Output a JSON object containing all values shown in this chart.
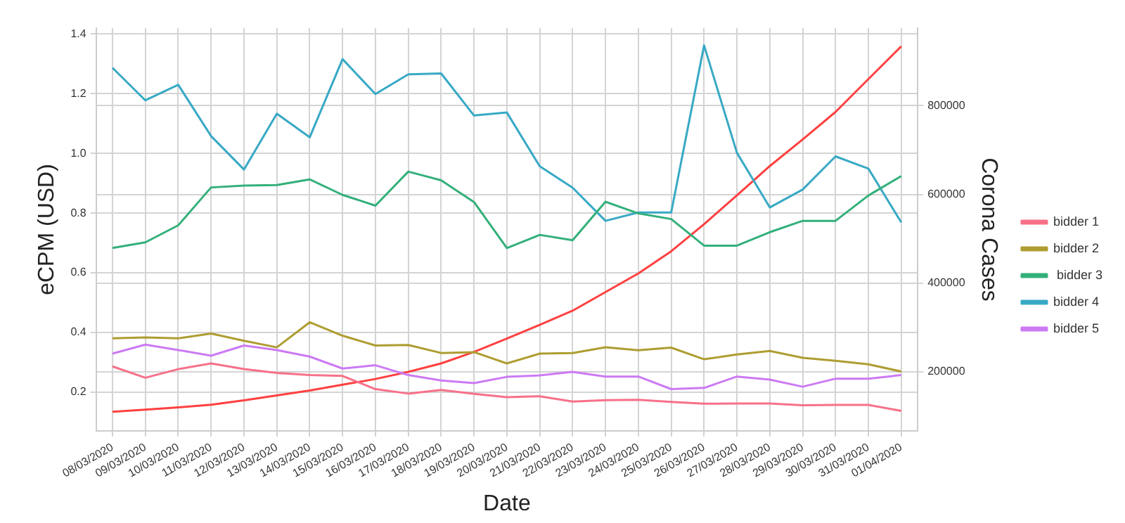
{
  "chart_data": {
    "type": "line",
    "xlabel": "Date",
    "ylabel": "eCPM (USD)",
    "y2label": "Corona Cases",
    "categories": [
      "08/03/2020",
      "09/03/2020",
      "10/03/2020",
      "11/03/2020",
      "12/03/2020",
      "13/03/2020",
      "14/03/2020",
      "15/03/2020",
      "16/03/2020",
      "17/03/2020",
      "18/03/2020",
      "19/03/2020",
      "20/03/2020",
      "21/03/2020",
      "22/03/2020",
      "23/03/2020",
      "24/03/2020",
      "25/03/2020",
      "26/03/2020",
      "27/03/2020",
      "28/03/2020",
      "29/03/2020",
      "30/03/2020",
      "31/03/2020",
      "01/04/2020"
    ],
    "series": [
      {
        "name": "bidder 1",
        "color": "#f77189",
        "values": [
          0.286,
          0.248,
          0.277,
          0.296,
          0.277,
          0.264,
          0.257,
          0.254,
          0.21,
          0.195,
          0.207,
          0.194,
          0.183,
          0.186,
          0.168,
          0.173,
          0.174,
          0.167,
          0.161,
          0.162,
          0.162,
          0.156,
          0.157,
          0.157,
          0.137
        ]
      },
      {
        "name": "bidder 2",
        "color": "#ae9d31",
        "values": [
          0.38,
          0.383,
          0.38,
          0.396,
          0.372,
          0.35,
          0.434,
          0.389,
          0.356,
          0.358,
          0.331,
          0.334,
          0.296,
          0.329,
          0.331,
          0.35,
          0.34,
          0.349,
          0.31,
          0.326,
          0.338,
          0.315,
          0.305,
          0.293,
          0.269
        ]
      },
      {
        "name": " bidder 3",
        "color": "#33b07a",
        "values": [
          0.683,
          0.702,
          0.759,
          0.886,
          0.892,
          0.894,
          0.913,
          0.861,
          0.825,
          0.939,
          0.91,
          0.837,
          0.683,
          0.727,
          0.709,
          0.838,
          0.799,
          0.78,
          0.691,
          0.691,
          0.736,
          0.774,
          0.774,
          0.859,
          0.924
        ]
      },
      {
        "name": "bidder 4",
        "color": "#38a9c5",
        "values": [
          1.287,
          1.178,
          1.23,
          1.058,
          0.946,
          1.133,
          1.054,
          1.316,
          1.199,
          1.265,
          1.268,
          1.127,
          1.137,
          0.957,
          0.885,
          0.774,
          0.802,
          0.802,
          1.362,
          1.002,
          0.819,
          0.879,
          0.99,
          0.949,
          0.769
        ]
      },
      {
        "name": "bidder 5",
        "color": "#cc7af4",
        "values": [
          0.329,
          0.359,
          0.341,
          0.322,
          0.356,
          0.341,
          0.319,
          0.279,
          0.29,
          0.257,
          0.239,
          0.23,
          0.251,
          0.256,
          0.268,
          0.252,
          0.252,
          0.21,
          0.214,
          0.252,
          0.242,
          0.218,
          0.245,
          0.245,
          0.257
        ]
      },
      {
        "color": "#ff4040",
        "axis": "y2",
        "values": [
          110000,
          115000,
          120000,
          126000,
          136000,
          147000,
          158000,
          171000,
          184000,
          200000,
          219000,
          245000,
          275000,
          306000,
          338000,
          380000,
          422000,
          472000,
          533000,
          598000,
          664000,
          724000,
          786000,
          860000,
          934000
        ]
      }
    ],
    "ylim": [
      0.07,
      1.42
    ],
    "yticks": [
      0.2,
      0.4,
      0.6,
      0.8,
      {
        "value": 1.0,
        "label": "1.0"
      },
      1.2,
      1.4
    ],
    "y2lim": [
      67000,
      975000
    ],
    "y2ticks": [
      200000,
      400000,
      600000,
      800000
    ],
    "grid": true,
    "legend": "right",
    "marker": "none",
    "line_style": "solid"
  }
}
